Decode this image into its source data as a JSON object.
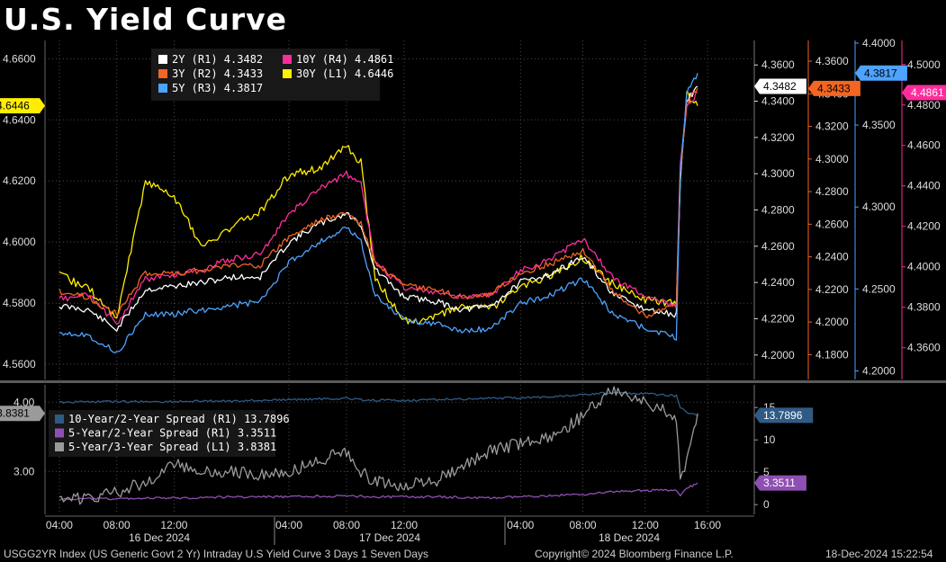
{
  "title": "U.S. Yield Curve",
  "footer": {
    "left": "USGG2YR Index (US Generic Govt 2 Yr) Intraday U.S Yield Curve 3 Days 1 Seven Days",
    "center": "Copyright© 2024 Bloomberg Finance L.P.",
    "right": "18-Dec-2024 15:22:54"
  },
  "colors": {
    "y2": "#ffffff",
    "y3": "#f26522",
    "y5": "#4da3ff",
    "y10": "#ff2d9b",
    "y30": "#ffee00",
    "s10_2": "#2f5a86",
    "s5_2": "#8e4fb3",
    "s5_3": "#9a9a9a",
    "grid": "#4a4a4a",
    "divider": "#5a5a5a"
  },
  "chart_data": [
    {
      "type": "line",
      "title": "",
      "x": [
        "16 Dec 04:00",
        "16 Dec 06:00",
        "16 Dec 08:00",
        "16 Dec 10:00",
        "16 Dec 12:00",
        "16 Dec 14:00",
        "16 Dec 16:00",
        "16 Dec 18:00",
        "17 Dec 04:00",
        "17 Dec 06:00",
        "17 Dec 08:00",
        "17 Dec 09:00",
        "17 Dec 10:00",
        "17 Dec 12:00",
        "17 Dec 14:00",
        "17 Dec 16:00",
        "17 Dec 18:00",
        "18 Dec 04:00",
        "18 Dec 06:00",
        "18 Dec 08:00",
        "18 Dec 10:00",
        "18 Dec 12:00",
        "18 Dec 14:00",
        "18 Dec 14:15",
        "18 Dec 14:40",
        "18 Dec 15:22"
      ],
      "x_tick_labels": [
        "04:00",
        "08:00",
        "12:00",
        "04:00",
        "08:00",
        "12:00",
        "04:00",
        "08:00",
        "12:00",
        "16:00"
      ],
      "day_labels": [
        "16 Dec 2024",
        "17 Dec 2024",
        "18 Dec 2024"
      ],
      "legend": [
        {
          "label": "2Y (R1) 4.3482",
          "color_key": "y2"
        },
        {
          "label": "10Y (R4) 4.4861",
          "color_key": "y10"
        },
        {
          "label": "3Y (R2) 4.3433",
          "color_key": "y3"
        },
        {
          "label": "30Y (L1) 4.6446",
          "color_key": "y30"
        },
        {
          "label": "5Y (R3) 4.3817",
          "color_key": "y5"
        }
      ],
      "series": [
        {
          "name": "2Y",
          "axis": "R1",
          "last": "4.3482",
          "color_key": "y2",
          "values": [
            4.227,
            4.225,
            4.214,
            4.236,
            4.238,
            4.24,
            4.243,
            4.243,
            4.262,
            4.272,
            4.278,
            4.272,
            4.247,
            4.232,
            4.23,
            4.225,
            4.227,
            4.24,
            4.245,
            4.254,
            4.233,
            4.225,
            4.222,
            4.3,
            4.34,
            4.3482
          ]
        },
        {
          "name": "3Y",
          "axis": "R2",
          "last": "4.3433",
          "color_key": "y3",
          "values": [
            4.219,
            4.215,
            4.205,
            4.23,
            4.23,
            4.232,
            4.235,
            4.235,
            4.252,
            4.262,
            4.267,
            4.26,
            4.236,
            4.222,
            4.22,
            4.215,
            4.217,
            4.23,
            4.236,
            4.244,
            4.218,
            4.204,
            4.21,
            4.29,
            4.335,
            4.3433
          ]
        },
        {
          "name": "5Y",
          "axis": "R3",
          "last": "4.3817",
          "color_key": "y5",
          "values": [
            4.224,
            4.222,
            4.211,
            4.234,
            4.235,
            4.237,
            4.24,
            4.242,
            4.266,
            4.278,
            4.287,
            4.279,
            4.246,
            4.231,
            4.229,
            4.224,
            4.226,
            4.241,
            4.247,
            4.256,
            4.234,
            4.226,
            4.22,
            4.32,
            4.37,
            4.3817
          ]
        },
        {
          "name": "10Y",
          "axis": "R4",
          "last": "4.4861",
          "color_key": "y10",
          "values": [
            4.384,
            4.386,
            4.372,
            4.394,
            4.396,
            4.399,
            4.404,
            4.406,
            4.426,
            4.438,
            4.446,
            4.441,
            4.402,
            4.39,
            4.388,
            4.385,
            4.386,
            4.398,
            4.404,
            4.414,
            4.394,
            4.386,
            4.38,
            4.45,
            4.48,
            4.4861
          ]
        },
        {
          "name": "30Y",
          "axis": "L1",
          "last": "4.6446",
          "color_key": "y30",
          "values": [
            4.589,
            4.585,
            4.575,
            4.62,
            4.615,
            4.598,
            4.605,
            4.61,
            4.622,
            4.624,
            4.631,
            4.626,
            4.588,
            4.574,
            4.575,
            4.579,
            4.578,
            4.585,
            4.589,
            4.595,
            4.586,
            4.581,
            4.58,
            4.62,
            4.648,
            4.6446
          ]
        }
      ],
      "axes": {
        "L1": {
          "range": [
            4.555,
            4.666
          ],
          "ticks": [
            "4.6600",
            "4.6400",
            "4.6200",
            "4.6000",
            "4.5800",
            "4.5600"
          ],
          "tick_values": [
            4.66,
            4.64,
            4.62,
            4.6,
            4.58,
            4.56
          ],
          "last_label": "4.6446",
          "last_value": 4.6446,
          "color_key": "y30"
        },
        "R1": {
          "range": [
            4.1865,
            4.3735
          ],
          "ticks": [
            "4.3600",
            "4.3400",
            "4.3200",
            "4.3000",
            "4.2800",
            "4.2600",
            "4.2400",
            "4.2200",
            "4.2000"
          ],
          "tick_values": [
            4.36,
            4.34,
            4.32,
            4.3,
            4.28,
            4.26,
            4.24,
            4.22,
            4.2
          ],
          "last_label": "4.3482",
          "last_value": 4.3482,
          "color_key": "y2"
        },
        "R2": {
          "range": [
            4.1648,
            4.3727
          ],
          "ticks": [
            "4.3600",
            "4.3400",
            "4.3200",
            "4.3000",
            "4.2800",
            "4.2600",
            "4.2400",
            "4.2200",
            "4.2000",
            "4.1800"
          ],
          "tick_values": [
            4.36,
            4.34,
            4.32,
            4.3,
            4.28,
            4.26,
            4.24,
            4.22,
            4.2,
            4.18
          ],
          "last_label": "4.3433",
          "last_value": 4.3433,
          "color_key": "y3"
        },
        "R3": {
          "range": [
            4.1948,
            4.4016
          ],
          "ticks": [
            "4.4000",
            "4.3500",
            "4.3000",
            "4.2500",
            "4.2000"
          ],
          "tick_values": [
            4.4,
            4.35,
            4.3,
            4.25,
            4.2
          ],
          "last_label": "4.3817",
          "last_value": 4.3817,
          "color_key": "y5"
        },
        "R4": {
          "range": [
            4.3443,
            4.5119
          ],
          "ticks": [
            "4.5000",
            "4.4800",
            "4.4600",
            "4.4400",
            "4.4200",
            "4.4000",
            "4.3800",
            "4.3600"
          ],
          "tick_values": [
            4.5,
            4.48,
            4.46,
            4.44,
            4.42,
            4.4,
            4.38,
            4.36
          ],
          "last_label": "4.4861",
          "last_value": 4.4861,
          "color_key": "y10"
        }
      },
      "grid": true
    },
    {
      "type": "line",
      "title": "",
      "x_ref": "same as upper panel",
      "legend": [
        {
          "label": "10-Year/2-Year Spread (R1) 13.7896",
          "color_key": "s10_2"
        },
        {
          "label": "5-Year/2-Year Spread (R1)  3.3511",
          "color_key": "s5_2"
        },
        {
          "label": "5-Year/3-Year Spread (L1)  3.8381",
          "color_key": "s5_3"
        }
      ],
      "series": [
        {
          "name": "10-Year/2-Year Spread",
          "axis": "R1",
          "last": "13.7896",
          "color_key": "s10_2",
          "values": [
            15.8,
            15.9,
            15.9,
            15.9,
            15.9,
            16.0,
            16.0,
            16.1,
            16.2,
            16.3,
            16.4,
            16.2,
            16.1,
            16.1,
            16.2,
            16.3,
            16.4,
            16.5,
            16.7,
            17.0,
            17.3,
            17.1,
            16.8,
            15.0,
            14.2,
            13.7896
          ]
        },
        {
          "name": "5-Year/2-Year Spread",
          "axis": "R1",
          "last": "3.3511",
          "color_key": "s5_2",
          "values": [
            0.8,
            0.9,
            0.9,
            1.0,
            1.0,
            1.1,
            1.2,
            1.2,
            1.2,
            1.3,
            1.3,
            1.3,
            1.2,
            1.2,
            1.2,
            1.1,
            1.0,
            1.2,
            1.4,
            1.6,
            2.0,
            2.2,
            2.2,
            1.3,
            2.5,
            3.3511
          ]
        },
        {
          "name": "5-Year/3-Year Spread",
          "axis": "L1",
          "last": "3.8381",
          "color_key": "s5_3",
          "values": [
            2.65,
            2.6,
            2.7,
            2.85,
            3.1,
            3.0,
            3.0,
            2.95,
            3.0,
            3.15,
            3.3,
            3.0,
            2.85,
            2.8,
            2.85,
            3.05,
            3.3,
            3.4,
            3.5,
            3.8,
            4.2,
            4.0,
            3.8,
            2.8,
            3.2,
            3.8381
          ]
        }
      ],
      "axes": {
        "L1": {
          "range": [
            2.38,
            4.25
          ],
          "ticks": [
            "4.00",
            "3.00"
          ],
          "tick_values": [
            4.0,
            3.0
          ],
          "last_label": "3.8381",
          "last_value": 3.8381
        },
        "R1": {
          "range": [
            -1.5,
            18.5
          ],
          "ticks": [
            "15",
            "10",
            "5",
            "0"
          ],
          "tick_values": [
            15,
            10,
            5,
            0
          ],
          "last_labels": [
            "13.7896",
            "3.3511"
          ]
        }
      },
      "grid": true
    }
  ]
}
